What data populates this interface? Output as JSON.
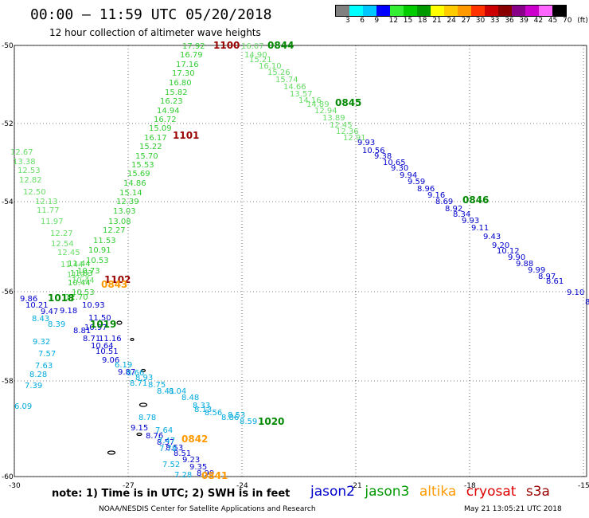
{
  "title": "00:00 – 11:59 UTC 05/20/2018",
  "subtitle": "12 hour collection of altimeter wave heights",
  "colorbar": {
    "colors": [
      "#808080",
      "#00ffff",
      "#00c8ff",
      "#0000ff",
      "#33ee33",
      "#00cc00",
      "#009900",
      "#ffff00",
      "#ffcc00",
      "#ff9900",
      "#ff3300",
      "#cc0000",
      "#880000",
      "#880088",
      "#cc00cc",
      "#ff66ff",
      "#000000"
    ],
    "labels": [
      "3",
      "6",
      "9",
      "12",
      "15",
      "18",
      "21",
      "24",
      "27",
      "30",
      "33",
      "36",
      "39",
      "42",
      "45",
      "70",
      "(ft)"
    ]
  },
  "axes": {
    "x_ticks": [
      "-30",
      "-27",
      "-24",
      "-21",
      "-18",
      "-15"
    ],
    "y_ticks": [
      "-50",
      "-52",
      "-54",
      "-56",
      "-58",
      "-60"
    ],
    "lon_range": [
      -30,
      -15
    ],
    "lat_range": [
      -60,
      -50
    ]
  },
  "map_data": {
    "tracks": [
      {
        "satellite": "jason3",
        "color": "#33cc33",
        "values": [
          "17.92",
          "16.79",
          "17.16",
          "17.30",
          "16.80",
          "15.82",
          "16.23",
          "14.94",
          "16.72",
          "15.09",
          "16.17",
          "15.22",
          "15.70",
          "15.53",
          "15.69",
          "14.86",
          "15.14",
          "12.39",
          "13.03",
          "13.08",
          "12.27",
          "11.53",
          "10.91",
          "10.53",
          "10.73",
          "11.44",
          "11.63",
          "10.44",
          "10.53",
          "12.70"
        ]
      },
      {
        "satellite": "jason3",
        "color": "#66dd66",
        "values": [
          "16.07",
          "14.90",
          "15.21",
          "16.10",
          "15.26",
          "15.74",
          "14.66",
          "13.57",
          "14.16",
          "14.89",
          "12.94",
          "13.89",
          "12.45",
          "12.36",
          "12.91"
        ]
      },
      {
        "satellite": "jason2",
        "color": "#0000cc",
        "values": [
          "9.93",
          "10.56",
          "9.38",
          "10.65",
          "9.30",
          "9.94",
          "9.59",
          "8.96",
          "9.16",
          "8.69",
          "8.92",
          "8.34",
          "9.93",
          "9.11",
          "9.43",
          "9.20",
          "10.12",
          "9.90",
          "9.88",
          "9.99",
          "8.97",
          "8.61",
          "9.10",
          "8.6"
        ]
      },
      {
        "satellite": "jason3",
        "color": "#66dd66",
        "values": [
          "12.67",
          "13.38",
          "12.53",
          "12.82",
          "12.50",
          "12.13",
          "11.77",
          "11.97",
          "12.27",
          "12.54",
          "12.45",
          "11.44",
          "11.93",
          "10.44"
        ]
      },
      {
        "satellite": "jason2",
        "color": "#0000cc",
        "values": [
          "9.86",
          "10.21",
          "9.47",
          "9.18",
          "10.93",
          "11.50",
          "10.97",
          "8.81",
          "8.71",
          "11.16",
          "10.64",
          "10.51",
          "9.06",
          "9.87",
          "9.15",
          "8.76",
          "8.57",
          "8.53",
          "8.51",
          "9.23",
          "9.35",
          "8.99"
        ]
      },
      {
        "satellite": "jason2",
        "color": "#00aadd",
        "values": [
          "8.43",
          "8.39",
          "9.32",
          "7.57",
          "7.63",
          "8.28",
          "7.39",
          "6.09",
          "6.19",
          "8.66",
          "8.93",
          "8.75",
          "8.71",
          "8.41",
          "8.04",
          "8.48",
          "8.33",
          "8.13",
          "8.56",
          "8.86",
          "8.53",
          "8.59",
          "8.78",
          "7.64",
          "7.47",
          "7.78",
          "7.52",
          "7.28"
        ]
      }
    ],
    "time_labels": [
      {
        "text": "1100",
        "color": "#990000"
      },
      {
        "text": "0844",
        "color": "#008800"
      },
      {
        "text": "0845",
        "color": "#008800"
      },
      {
        "text": "1101",
        "color": "#990000"
      },
      {
        "text": "0846",
        "color": "#008800"
      },
      {
        "text": "1102",
        "color": "#990000"
      },
      {
        "text": "0843",
        "color": "#ff9900"
      },
      {
        "text": "1018",
        "color": "#008800"
      },
      {
        "text": "1019",
        "color": "#008800"
      },
      {
        "text": "1020",
        "color": "#008800"
      },
      {
        "text": "0842",
        "color": "#ff9900"
      },
      {
        "text": "0841",
        "color": "#ff9900"
      }
    ]
  },
  "note": "note: 1) Time is in UTC; 2) SWH is in feet",
  "legend": [
    {
      "name": "jason2",
      "color": "#0000cc"
    },
    {
      "name": "jason3",
      "color": "#009900"
    },
    {
      "name": "altika",
      "color": "#ff9900"
    },
    {
      "name": "cryosat",
      "color": "#dd0000"
    },
    {
      "name": "s3a",
      "color": "#990000"
    }
  ],
  "credits": {
    "source": "NOAA/NESDIS Center for Satellite Applications and Research",
    "timestamp": "May 21 13:05:21 UTC 2018"
  }
}
